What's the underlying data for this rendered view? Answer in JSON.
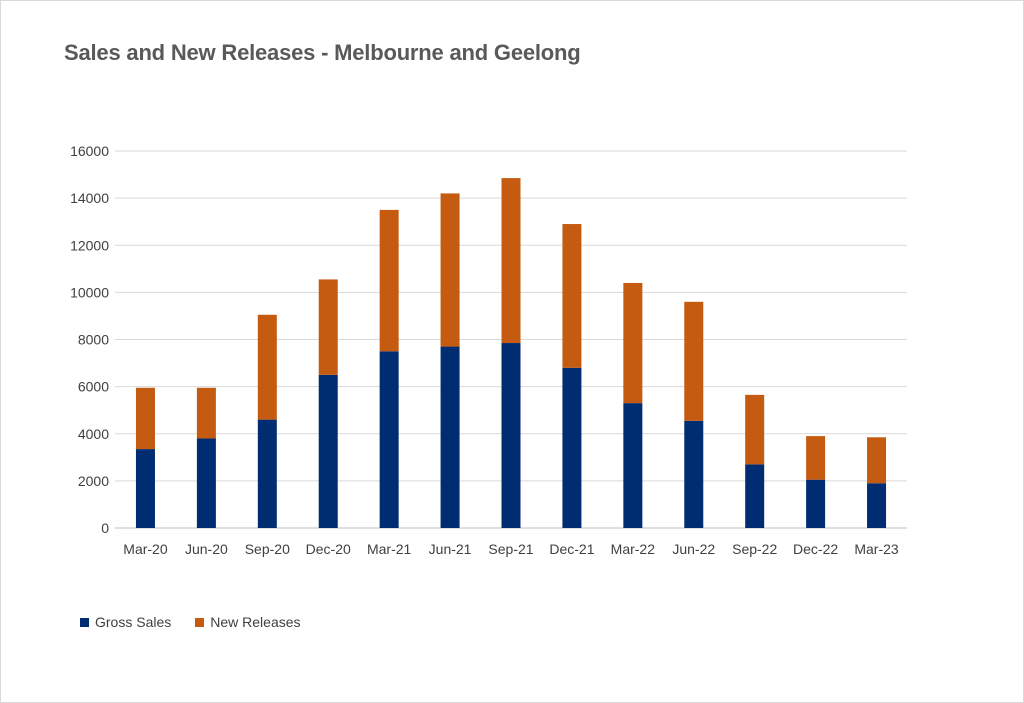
{
  "chart_data": {
    "type": "bar",
    "stacked": true,
    "title": "Sales and New Releases - Melbourne and Geelong",
    "xlabel": "",
    "ylabel": "",
    "categories": [
      "Mar-20",
      "Jun-20",
      "Sep-20",
      "Dec-20",
      "Mar-21",
      "Jun-21",
      "Sep-21",
      "Dec-21",
      "Mar-22",
      "Jun-22",
      "Sep-22",
      "Dec-22",
      "Mar-23"
    ],
    "series": [
      {
        "name": "Gross Sales",
        "color": "#002D72",
        "values": [
          3350,
          3800,
          4600,
          6500,
          7500,
          7700,
          7850,
          6800,
          5300,
          4550,
          2700,
          2050,
          1900
        ]
      },
      {
        "name": "New Releases",
        "color": "#C55A11",
        "values": [
          2600,
          2150,
          4450,
          4050,
          6000,
          6500,
          7000,
          6100,
          5100,
          5050,
          2950,
          1850,
          1950
        ]
      }
    ],
    "ylim": [
      0,
      16000
    ],
    "yticks": [
      "0",
      "2000",
      "4000",
      "6000",
      "8000",
      "10000",
      "12000",
      "14000",
      "16000"
    ],
    "grid": true,
    "legend_position": "bottom-left"
  }
}
